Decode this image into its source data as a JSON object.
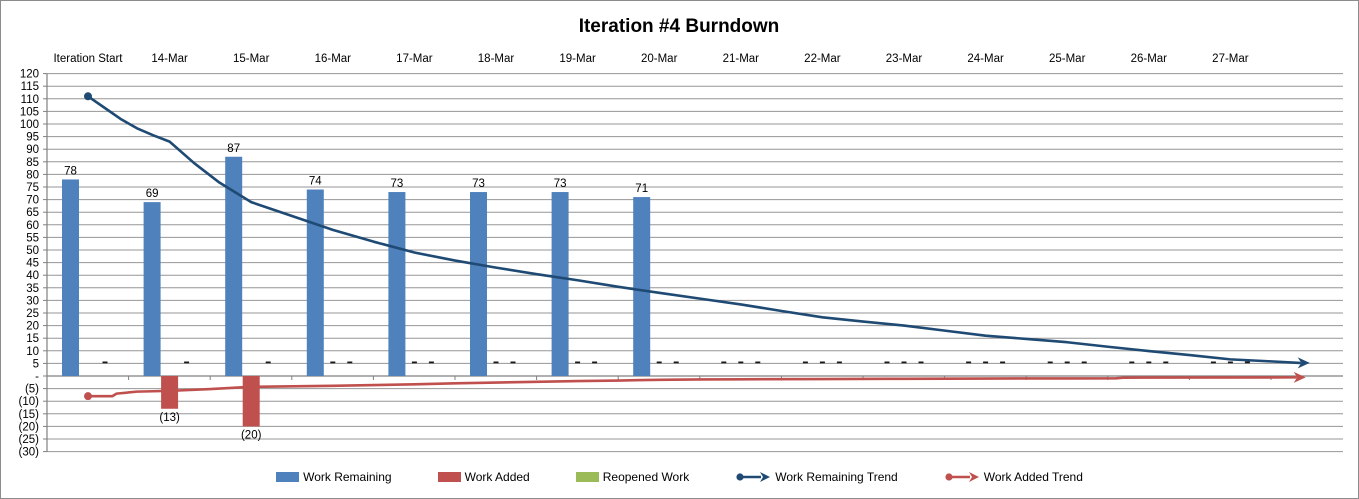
{
  "window": {
    "title": "Iteration #4 Burndown"
  },
  "chart_data": {
    "type": "bar",
    "subtype": "combo bar + trend lines (burndown)",
    "title": "Iteration #4 Burndown",
    "categories": [
      "Iteration Start",
      "14-Mar",
      "15-Mar",
      "16-Mar",
      "17-Mar",
      "18-Mar",
      "19-Mar",
      "20-Mar",
      "21-Mar",
      "22-Mar",
      "23-Mar",
      "24-Mar",
      "25-Mar",
      "26-Mar",
      "27-Mar"
    ],
    "y_axis": {
      "min": -30,
      "max": 120,
      "step": 5,
      "ticks": [
        "120",
        "115",
        "110",
        "105",
        "100",
        "95",
        "90",
        "85",
        "80",
        "75",
        "70",
        "65",
        "60",
        "55",
        "50",
        "45",
        "40",
        "35",
        "30",
        "25",
        "20",
        "15",
        "10",
        "5",
        "-",
        "(5)",
        "(10)",
        "(15)",
        "(20)",
        "(25)",
        "(30)"
      ],
      "zero_label": "-"
    },
    "grid": "horizontal",
    "legend_position": "bottom",
    "colors": {
      "work_remaining": "#4F81BD",
      "work_added": "#C0504D",
      "reopened_work": "#9BBB59",
      "work_remaining_trend": "#1F4A73",
      "work_added_trend": "#C0504D",
      "gridline": "#969696",
      "axis": "#808080",
      "text": "#000000"
    },
    "series": [
      {
        "name": "Work Remaining",
        "type": "bar",
        "color": "#4F81BD",
        "values": [
          78,
          69,
          87,
          74,
          73,
          73,
          73,
          71,
          null,
          null,
          null,
          null,
          null,
          null,
          null
        ],
        "labels": [
          "78",
          "69",
          "87",
          "74",
          "73",
          "73",
          "73",
          "71",
          null,
          null,
          null,
          null,
          null,
          null,
          null
        ]
      },
      {
        "name": "Work Added",
        "type": "bar",
        "color": "#C0504D",
        "values": [
          null,
          -13,
          -20,
          null,
          null,
          null,
          null,
          null,
          null,
          null,
          null,
          null,
          null,
          null,
          null
        ],
        "labels": [
          null,
          "(13)",
          "(20)",
          null,
          null,
          null,
          null,
          null,
          null,
          null,
          null,
          null,
          null,
          null,
          null
        ]
      },
      {
        "name": "Reopened Work",
        "type": "bar",
        "color": "#9BBB59",
        "values": [
          null,
          null,
          null,
          null,
          null,
          null,
          null,
          null,
          null,
          null,
          null,
          null,
          null,
          null,
          null
        ],
        "labels": [
          null,
          null,
          null,
          null,
          null,
          null,
          null,
          null,
          null,
          null,
          null,
          null,
          null,
          null,
          null
        ]
      },
      {
        "name": "Work Remaining Trend",
        "type": "line",
        "color": "#1F4A73",
        "marker": "dot-start arrow-end",
        "points": [
          [
            0,
            111
          ],
          [
            0.2,
            106.5
          ],
          [
            0.4,
            102
          ],
          [
            0.6,
            98.3
          ],
          [
            0.8,
            95.5
          ],
          [
            1,
            93
          ],
          [
            1.3,
            84.5
          ],
          [
            1.6,
            77
          ],
          [
            2,
            69
          ],
          [
            2.5,
            63.5
          ],
          [
            3,
            58
          ],
          [
            3.5,
            53.3
          ],
          [
            4,
            49
          ],
          [
            4.5,
            45.8
          ],
          [
            5,
            43
          ],
          [
            5.5,
            40.4
          ],
          [
            6,
            38
          ],
          [
            6.5,
            35.4
          ],
          [
            7,
            33
          ],
          [
            7.5,
            30.7
          ],
          [
            8,
            28.4
          ],
          [
            8.5,
            25.8
          ],
          [
            9,
            23.3
          ],
          [
            9.5,
            21.6
          ],
          [
            10,
            20
          ],
          [
            10.5,
            18
          ],
          [
            11,
            16
          ],
          [
            11.5,
            14.7
          ],
          [
            12,
            13.4
          ],
          [
            12.5,
            11.6
          ],
          [
            13,
            9.9
          ],
          [
            13.5,
            8.3
          ],
          [
            14,
            6.6
          ],
          [
            14.5,
            5.8
          ],
          [
            14.85,
            5.2
          ]
        ]
      },
      {
        "name": "Work Added Trend",
        "type": "line",
        "color": "#C0504D",
        "marker": "dot-start arrow-end",
        "points": [
          [
            0,
            -8
          ],
          [
            0.3,
            -8
          ],
          [
            0.35,
            -7
          ],
          [
            0.6,
            -6.2
          ],
          [
            1,
            -5.9
          ],
          [
            1.5,
            -5.2
          ],
          [
            2,
            -4.3
          ],
          [
            2.5,
            -4.1
          ],
          [
            3,
            -3.9
          ],
          [
            3.5,
            -3.6
          ],
          [
            4,
            -3.3
          ],
          [
            4.5,
            -2.9
          ],
          [
            5,
            -2.6
          ],
          [
            5.5,
            -2.3
          ],
          [
            6,
            -2.0
          ],
          [
            6.5,
            -1.8
          ],
          [
            7,
            -1.5
          ],
          [
            7.5,
            -1.35
          ],
          [
            8,
            -1.3
          ],
          [
            9,
            -1.2
          ],
          [
            10,
            -1.1
          ],
          [
            11,
            -1.0
          ],
          [
            12,
            -0.95
          ],
          [
            12.6,
            -0.9
          ],
          [
            12.7,
            -0.65
          ],
          [
            14.8,
            -0.55
          ]
        ]
      }
    ],
    "zero_value_dash": "-"
  },
  "legend": {
    "items": [
      {
        "label": "Work Remaining"
      },
      {
        "label": "Work Added"
      },
      {
        "label": "Reopened Work"
      },
      {
        "label": "Work Remaining Trend"
      },
      {
        "label": "Work Added Trend"
      }
    ]
  }
}
